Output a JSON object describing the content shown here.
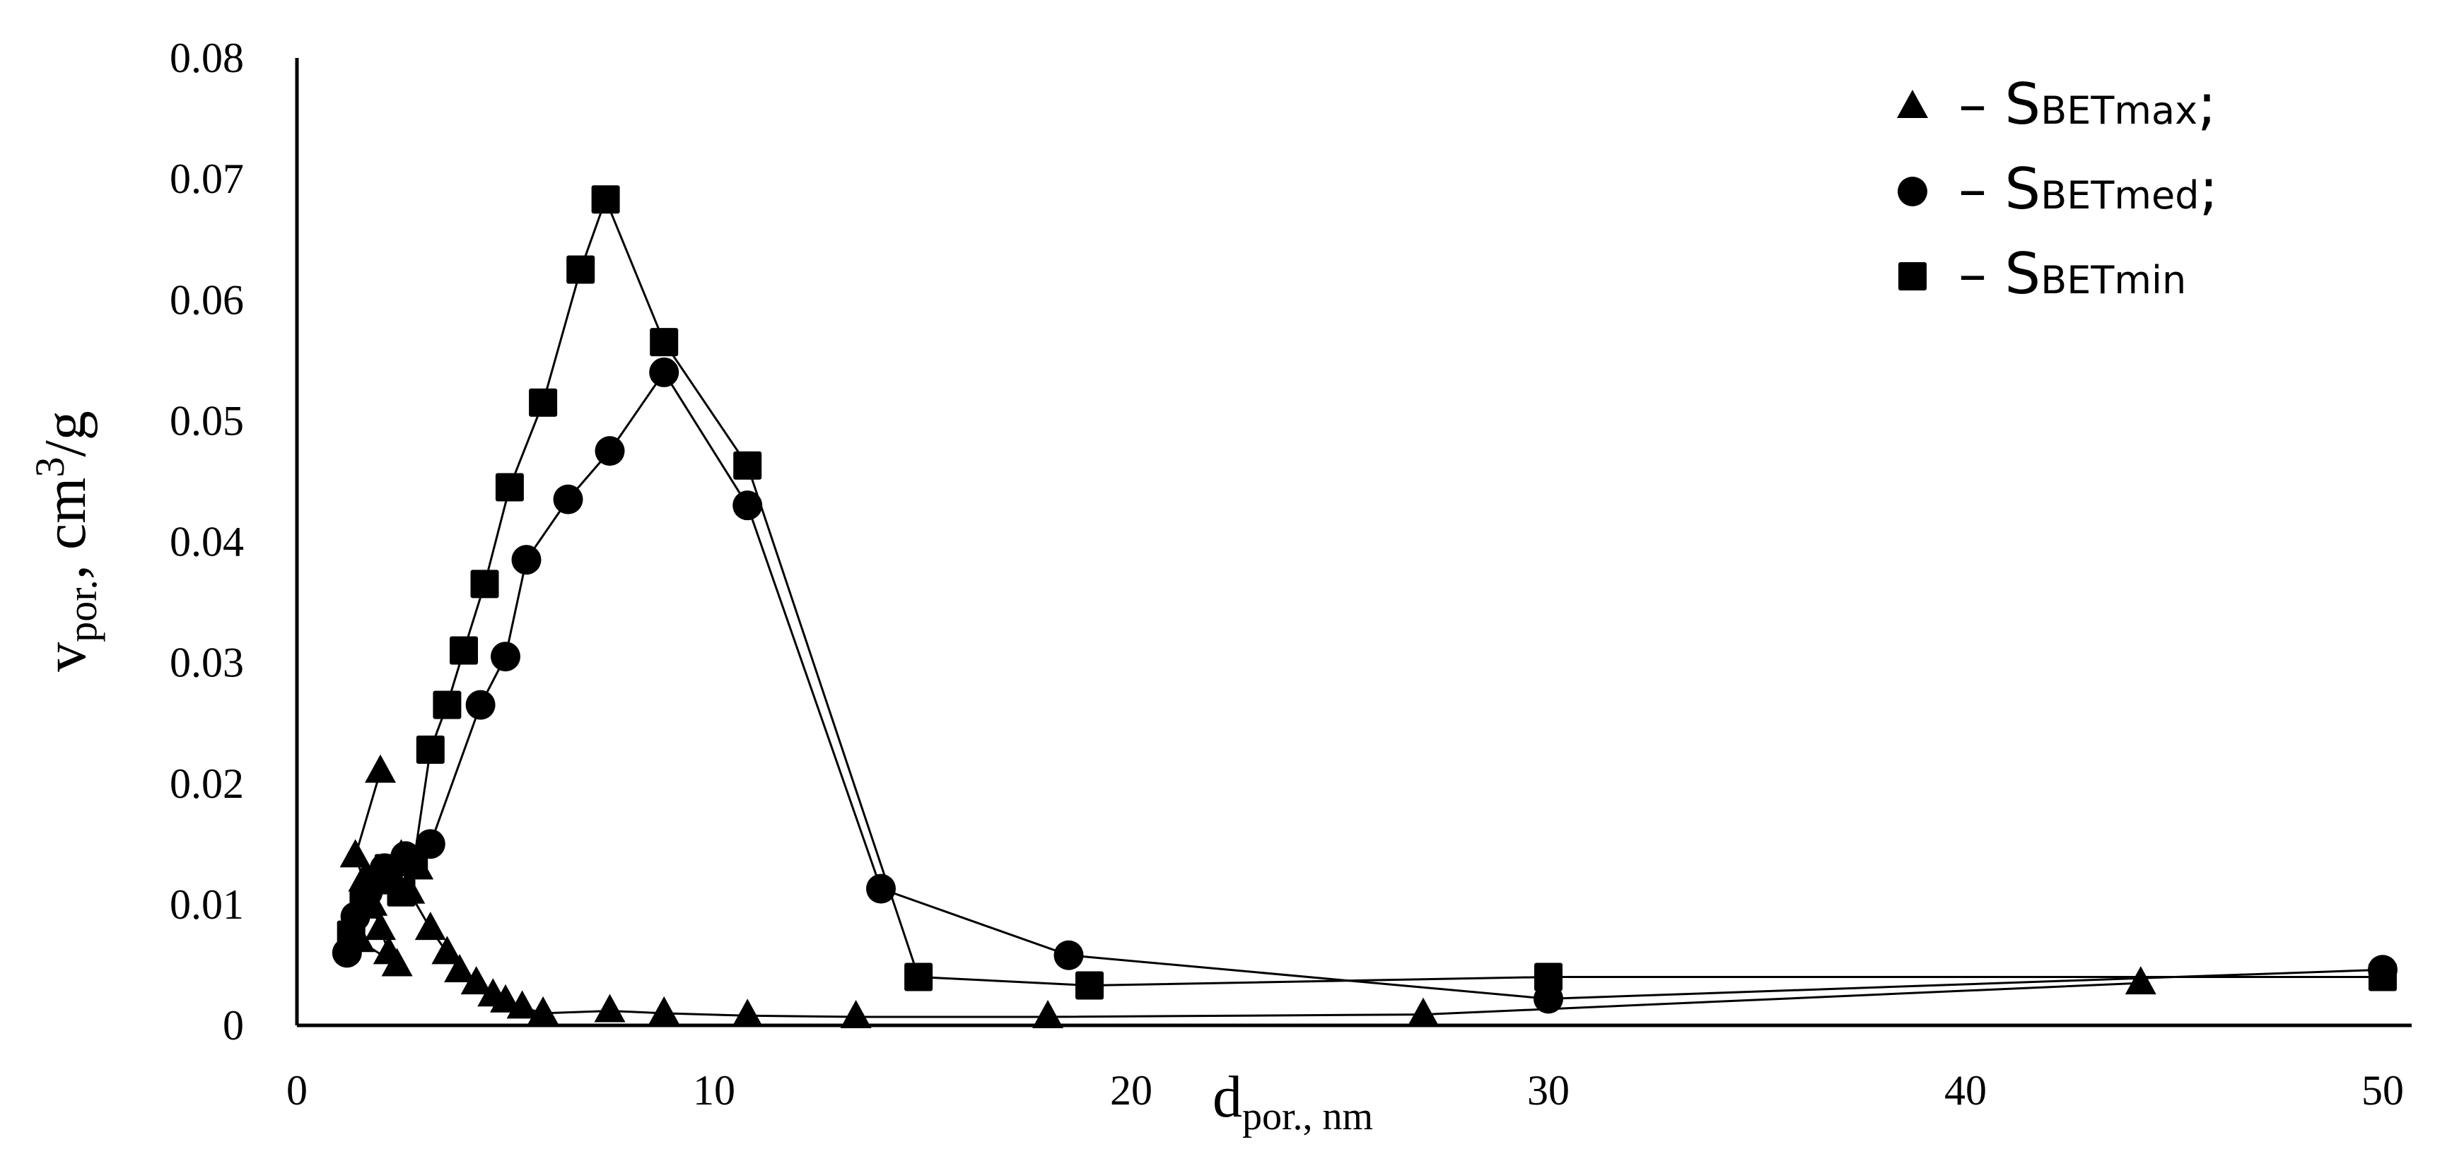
{
  "chart_data": {
    "type": "scatter",
    "xlabel": {
      "main": "d",
      "sub": "por., nm"
    },
    "ylabel": {
      "main": "v",
      "sub": "por.",
      "sep": ", ",
      "unit_pre": "cm",
      "unit_sup": "3",
      "unit_post": "/g"
    },
    "xlim": [
      0,
      50
    ],
    "ylim": [
      0,
      0.08
    ],
    "xticks": [
      "0",
      "10",
      "20",
      "30",
      "40",
      "50"
    ],
    "yticks": [
      "0",
      "0.01",
      "0.02",
      "0.03",
      "0.04",
      "0.05",
      "0.06",
      "0.07",
      "0.08"
    ],
    "grid": false,
    "legend_position": "top-right",
    "series": [
      {
        "name": "SBETmax",
        "legend": {
          "dash": "–",
          "base": "S",
          "sub": "BETmax",
          "end": ";"
        },
        "marker": "triangle",
        "points": [
          [
            2.0,
            0.021
          ],
          [
            1.4,
            0.014
          ],
          [
            1.6,
            0.012
          ],
          [
            1.8,
            0.01
          ],
          [
            2.0,
            0.008
          ],
          [
            2.2,
            0.006
          ],
          [
            2.4,
            0.005
          ],
          [
            1.5,
            0.007
          ],
          [
            1.9,
            0.0125
          ],
          [
            2.5,
            0.014
          ],
          [
            2.9,
            0.013
          ],
          [
            2.7,
            0.011
          ],
          [
            3.2,
            0.008
          ],
          [
            3.6,
            0.006
          ],
          [
            3.9,
            0.0045
          ],
          [
            4.3,
            0.0035
          ],
          [
            4.7,
            0.0025
          ],
          [
            5.0,
            0.002
          ],
          [
            5.4,
            0.0015
          ],
          [
            5.9,
            0.001
          ],
          [
            7.5,
            0.0012
          ],
          [
            8.8,
            0.001
          ],
          [
            10.8,
            0.0008
          ],
          [
            13.4,
            0.0007
          ],
          [
            18.0,
            0.0007
          ],
          [
            27.0,
            0.0009
          ],
          [
            44.2,
            0.0035
          ]
        ]
      },
      {
        "name": "SBETmed",
        "legend": {
          "dash": "–",
          "base": "S",
          "sub": "BETmed",
          "end": ";"
        },
        "marker": "circle",
        "points": [
          [
            1.2,
            0.006
          ],
          [
            1.4,
            0.009
          ],
          [
            1.7,
            0.011
          ],
          [
            2.1,
            0.013
          ],
          [
            2.6,
            0.014
          ],
          [
            3.2,
            0.015
          ],
          [
            4.4,
            0.0265
          ],
          [
            5.0,
            0.0305
          ],
          [
            5.5,
            0.0385
          ],
          [
            6.5,
            0.0435
          ],
          [
            7.5,
            0.0475
          ],
          [
            8.8,
            0.054
          ],
          [
            10.8,
            0.043
          ],
          [
            14.0,
            0.0113
          ],
          [
            18.5,
            0.0058
          ],
          [
            30.0,
            0.0022
          ],
          [
            50.0,
            0.0046
          ]
        ]
      },
      {
        "name": "SBETmin",
        "legend": {
          "dash": "–",
          "base": "S",
          "sub": "BETmin",
          "end": ""
        },
        "marker": "square",
        "points": [
          [
            1.3,
            0.0075
          ],
          [
            1.6,
            0.01
          ],
          [
            1.9,
            0.012
          ],
          [
            2.2,
            0.013
          ],
          [
            2.5,
            0.011
          ],
          [
            2.8,
            0.0135
          ],
          [
            3.2,
            0.0228
          ],
          [
            3.6,
            0.0265
          ],
          [
            4.0,
            0.031
          ],
          [
            4.5,
            0.0365
          ],
          [
            5.1,
            0.0445
          ],
          [
            5.9,
            0.0515
          ],
          [
            6.8,
            0.0625
          ],
          [
            7.4,
            0.0683
          ],
          [
            8.8,
            0.0565
          ],
          [
            10.8,
            0.0463
          ],
          [
            14.9,
            0.004
          ],
          [
            19.0,
            0.0033
          ],
          [
            30.0,
            0.004
          ],
          [
            50.0,
            0.004
          ]
        ]
      }
    ]
  }
}
